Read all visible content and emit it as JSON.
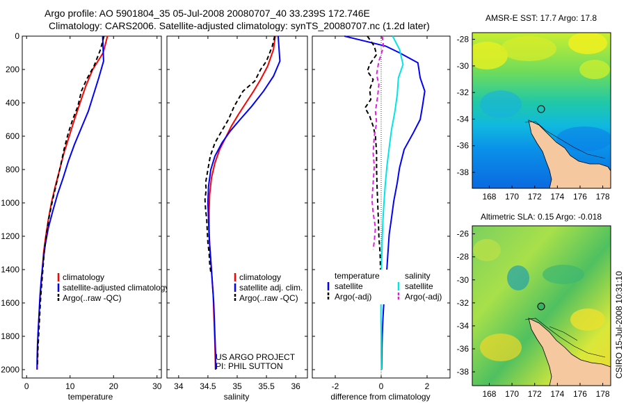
{
  "title": {
    "line1": "Argo profile: AO 5901804_35 05-Jul-2008 20080707_40 33.239S 172.746E",
    "line2": "Climatology: CARS2006. Satellite-adjusted climatology: synTS_20080707.nc (1.2d later)"
  },
  "footer": {
    "project": "US ARGO PROJECT",
    "pi": "PI: PHIL SUTTON",
    "stamp": "CSIRO 15-Jul-2008 10:31:10"
  },
  "colors": {
    "climatology": "#ff0000",
    "satellite": "#0000ff",
    "argo": "#000000",
    "sat_salinity": "#00e5e5",
    "argo_salinity": "#e020e0",
    "land": "#f5c8a0"
  },
  "chart_data": [
    {
      "type": "line",
      "panel": "temperature",
      "xlabel": "temperature",
      "ylabel": "",
      "xlim": [
        -1,
        31
      ],
      "ylim": [
        2050,
        0
      ],
      "xticks": [
        0,
        10,
        20,
        30
      ],
      "yticks": [
        0,
        200,
        400,
        600,
        800,
        1000,
        1200,
        1400,
        1600,
        1800,
        2000
      ],
      "legend": [
        "climatology",
        "satellite-adjusted climatology",
        "Argo(..raw -QC)"
      ],
      "series": [
        {
          "name": "climatology",
          "color": "climatology",
          "dash": "",
          "points": [
            [
              18.6,
              0
            ],
            [
              17.6,
              100
            ],
            [
              15.2,
              200
            ],
            [
              13.6,
              300
            ],
            [
              12.3,
              400
            ],
            [
              11.0,
              500
            ],
            [
              9.8,
              600
            ],
            [
              8.6,
              700
            ],
            [
              7.6,
              800
            ],
            [
              6.6,
              900
            ],
            [
              5.7,
              1000
            ],
            [
              5.0,
              1100
            ],
            [
              4.4,
              1200
            ],
            [
              3.9,
              1300
            ],
            [
              3.6,
              1400
            ],
            [
              3.3,
              1500
            ],
            [
              3.0,
              1600
            ],
            [
              2.8,
              1700
            ],
            [
              2.6,
              1800
            ],
            [
              2.5,
              1900
            ],
            [
              2.4,
              2000
            ]
          ]
        },
        {
          "name": "satellite-adjusted climatology",
          "color": "satellite",
          "dash": "",
          "points": [
            [
              17.5,
              0
            ],
            [
              17.7,
              150
            ],
            [
              16.6,
              250
            ],
            [
              15.4,
              350
            ],
            [
              14.2,
              450
            ],
            [
              12.6,
              550
            ],
            [
              11.0,
              650
            ],
            [
              9.6,
              750
            ],
            [
              8.4,
              850
            ],
            [
              7.1,
              950
            ],
            [
              6.0,
              1050
            ],
            [
              5.0,
              1150
            ],
            [
              4.3,
              1250
            ],
            [
              3.8,
              1350
            ],
            [
              3.4,
              1450
            ],
            [
              3.1,
              1550
            ],
            [
              2.9,
              1650
            ],
            [
              2.7,
              1750
            ],
            [
              2.5,
              1850
            ],
            [
              2.4,
              1950
            ],
            [
              2.4,
              2000
            ]
          ]
        },
        {
          "name": "Argo(..raw -QC)",
          "color": "argo",
          "dash": "6,4",
          "points": [
            [
              17.8,
              0
            ],
            [
              17.0,
              80
            ],
            [
              15.5,
              180
            ],
            [
              13.8,
              260
            ],
            [
              12.6,
              330
            ],
            [
              11.8,
              420
            ],
            [
              10.6,
              500
            ],
            [
              9.6,
              580
            ],
            [
              8.6,
              680
            ],
            [
              7.8,
              780
            ],
            [
              6.9,
              880
            ],
            [
              6.0,
              980
            ],
            [
              5.2,
              1080
            ],
            [
              4.6,
              1180
            ],
            [
              4.1,
              1280
            ],
            [
              3.8,
              1380
            ],
            [
              3.5,
              1480
            ],
            [
              3.2,
              1580
            ],
            [
              3.0,
              1680
            ],
            [
              2.8,
              1780
            ],
            [
              2.6,
              1880
            ],
            [
              2.5,
              1980
            ]
          ]
        }
      ]
    },
    {
      "type": "line",
      "panel": "salinity",
      "xlabel": "salinity",
      "xlim": [
        33.8,
        36.2
      ],
      "ylim": [
        2050,
        0
      ],
      "xticks": [
        34,
        34.5,
        35,
        35.5,
        36
      ],
      "legend": [
        "climatology",
        "satellite adj. clim.",
        "Argo(..raw -QC)"
      ],
      "series": [
        {
          "name": "climatology",
          "color": "climatology",
          "dash": "",
          "points": [
            [
              35.65,
              0
            ],
            [
              35.62,
              80
            ],
            [
              35.52,
              180
            ],
            [
              35.4,
              260
            ],
            [
              35.28,
              330
            ],
            [
              35.15,
              400
            ],
            [
              35.02,
              470
            ],
            [
              34.9,
              540
            ],
            [
              34.8,
              610
            ],
            [
              34.7,
              680
            ],
            [
              34.62,
              760
            ],
            [
              34.56,
              850
            ],
            [
              34.53,
              950
            ],
            [
              34.52,
              1050
            ],
            [
              34.52,
              1150
            ],
            [
              34.53,
              1250
            ],
            [
              34.55,
              1350
            ],
            [
              34.57,
              1450
            ],
            [
              34.59,
              1550
            ],
            [
              34.6,
              1650
            ],
            [
              34.61,
              1750
            ],
            [
              34.62,
              1850
            ],
            [
              34.63,
              2000
            ]
          ]
        },
        {
          "name": "satellite adj. clim.",
          "color": "satellite",
          "dash": "",
          "points": [
            [
              35.7,
              0
            ],
            [
              35.73,
              150
            ],
            [
              35.62,
              240
            ],
            [
              35.45,
              330
            ],
            [
              35.25,
              420
            ],
            [
              35.05,
              500
            ],
            [
              34.88,
              570
            ],
            [
              34.74,
              640
            ],
            [
              34.62,
              720
            ],
            [
              34.55,
              800
            ],
            [
              34.51,
              900
            ],
            [
              34.5,
              1000
            ],
            [
              34.51,
              1100
            ],
            [
              34.52,
              1200
            ],
            [
              34.54,
              1300
            ],
            [
              34.56,
              1400
            ],
            [
              34.58,
              1500
            ],
            [
              34.6,
              1600
            ],
            [
              34.61,
              1700
            ],
            [
              34.62,
              1800
            ],
            [
              34.63,
              1900
            ],
            [
              34.63,
              2000
            ]
          ]
        },
        {
          "name": "Argo(..raw -QC)",
          "color": "argo",
          "dash": "6,4",
          "points": [
            [
              35.64,
              0
            ],
            [
              35.6,
              60
            ],
            [
              35.5,
              150
            ],
            [
              35.4,
              200
            ],
            [
              35.3,
              270
            ],
            [
              35.1,
              330
            ],
            [
              34.95,
              420
            ],
            [
              34.85,
              500
            ],
            [
              34.75,
              560
            ],
            [
              34.62,
              640
            ],
            [
              34.54,
              720
            ],
            [
              34.5,
              800
            ],
            [
              34.46,
              880
            ],
            [
              34.47,
              920
            ],
            [
              34.45,
              980
            ],
            [
              34.46,
              1040
            ],
            [
              34.48,
              1100
            ],
            [
              34.49,
              1180
            ],
            [
              34.5,
              1240
            ],
            [
              34.52,
              1300
            ],
            [
              34.53,
              1360
            ],
            [
              34.55,
              1420
            ]
          ]
        }
      ]
    },
    {
      "type": "line",
      "panel": "difference",
      "xlabel": "difference from climatology",
      "xlim": [
        -3,
        3
      ],
      "ylim": [
        2050,
        0
      ],
      "xticks": [
        -2,
        0,
        2
      ],
      "legend_temperature": {
        "heading": "temperature",
        "items": [
          "satellite",
          "Argo(-adj)"
        ]
      },
      "legend_salinity": {
        "heading": "salinity",
        "items": [
          "satellite",
          "Argo(-adj)"
        ]
      },
      "series": [
        {
          "name": "temperature satellite",
          "color": "satellite",
          "dash": "",
          "points": [
            [
              -1.6,
              0
            ],
            [
              -1.0,
              20
            ],
            [
              0.2,
              60
            ],
            [
              0.8,
              100
            ],
            [
              1.6,
              160
            ],
            [
              1.7,
              250
            ],
            [
              1.9,
              330
            ],
            [
              1.8,
              420
            ],
            [
              1.7,
              500
            ],
            [
              1.4,
              580
            ],
            [
              1.0,
              680
            ],
            [
              0.8,
              790
            ],
            [
              0.7,
              880
            ],
            [
              0.55,
              990
            ],
            [
              0.45,
              1090
            ],
            [
              0.35,
              1190
            ],
            [
              0.3,
              1290
            ],
            [
              0.25,
              1390
            ],
            [
              0.2,
              1490
            ],
            [
              0.12,
              1590
            ],
            [
              0.08,
              1690
            ],
            [
              0.05,
              1790
            ],
            [
              0.03,
              1890
            ],
            [
              0.02,
              2000
            ]
          ]
        },
        {
          "name": "temperature Argo(-adj)",
          "color": "argo",
          "dash": "6,4",
          "points": [
            [
              -0.6,
              0
            ],
            [
              -0.3,
              60
            ],
            [
              -0.2,
              110
            ],
            [
              -0.5,
              170
            ],
            [
              -0.6,
              210
            ],
            [
              -0.35,
              260
            ],
            [
              -0.5,
              320
            ],
            [
              -0.45,
              380
            ],
            [
              -0.7,
              430
            ],
            [
              -0.5,
              480
            ],
            [
              -0.35,
              540
            ],
            [
              -0.25,
              600
            ],
            [
              -0.2,
              700
            ],
            [
              -0.2,
              800
            ],
            [
              -0.18,
              900
            ],
            [
              -0.15,
              1000
            ],
            [
              -0.12,
              1100
            ],
            [
              -0.1,
              1200
            ],
            [
              -0.05,
              1300
            ],
            [
              -0.03,
              1400
            ],
            [
              0.0,
              1450
            ]
          ]
        },
        {
          "name": "salinity satellite",
          "color": "sat_salinity",
          "dash": "",
          "points": [
            [
              0.5,
              0
            ],
            [
              0.8,
              80
            ],
            [
              0.95,
              170
            ],
            [
              0.75,
              250
            ],
            [
              0.7,
              350
            ],
            [
              0.6,
              450
            ],
            [
              0.45,
              560
            ],
            [
              0.35,
              670
            ],
            [
              0.25,
              780
            ],
            [
              0.18,
              890
            ],
            [
              0.12,
              1000
            ],
            [
              0.08,
              1100
            ],
            [
              0.05,
              1200
            ],
            [
              0.03,
              1300
            ],
            [
              0.01,
              1400
            ],
            [
              0.0,
              1500
            ],
            [
              -0.01,
              1600
            ],
            [
              -0.01,
              1700
            ],
            [
              0.0,
              1800
            ],
            [
              0.0,
              1900
            ],
            [
              0.01,
              2000
            ]
          ]
        },
        {
          "name": "salinity Argo(-adj)",
          "color": "argo_salinity",
          "dash": "6,4",
          "points": [
            [
              0.05,
              0
            ],
            [
              0.1,
              60
            ],
            [
              0.0,
              110
            ],
            [
              -0.1,
              150
            ],
            [
              -0.2,
              230
            ],
            [
              -0.1,
              290
            ],
            [
              -0.15,
              360
            ],
            [
              -0.25,
              450
            ],
            [
              -0.2,
              520
            ],
            [
              -0.3,
              600
            ],
            [
              -0.35,
              700
            ],
            [
              -0.3,
              780
            ],
            [
              -0.35,
              880
            ],
            [
              -0.4,
              980
            ],
            [
              -0.35,
              1060
            ],
            [
              -0.25,
              1150
            ],
            [
              -0.3,
              1230
            ],
            [
              -0.35,
              1280
            ]
          ]
        }
      ]
    },
    {
      "type": "heatmap",
      "panel": "sst-map",
      "title": "AMSR-E SST: 17.7 Argo: 17.8",
      "xlim": [
        166.5,
        178.7
      ],
      "ylim": [
        -39.2,
        -27.5
      ],
      "xticks": [
        168,
        170,
        172,
        174,
        176,
        178
      ],
      "yticks": [
        -28,
        -30,
        -32,
        -34,
        -36,
        -38
      ],
      "marker": {
        "lon": 172.75,
        "lat": -33.24
      }
    },
    {
      "type": "heatmap",
      "panel": "sla-map",
      "title": "Altimetric SLA: 0.15 Argo: -0.018",
      "xlim": [
        166.5,
        178.7
      ],
      "ylim": [
        -39.2,
        -25.3
      ],
      "xticks": [
        168,
        170,
        172,
        174,
        176,
        178
      ],
      "yticks": [
        -26,
        -28,
        -30,
        -32,
        -34,
        -36,
        -38
      ],
      "marker": {
        "lon": 172.75,
        "lat": -33.24
      }
    }
  ]
}
